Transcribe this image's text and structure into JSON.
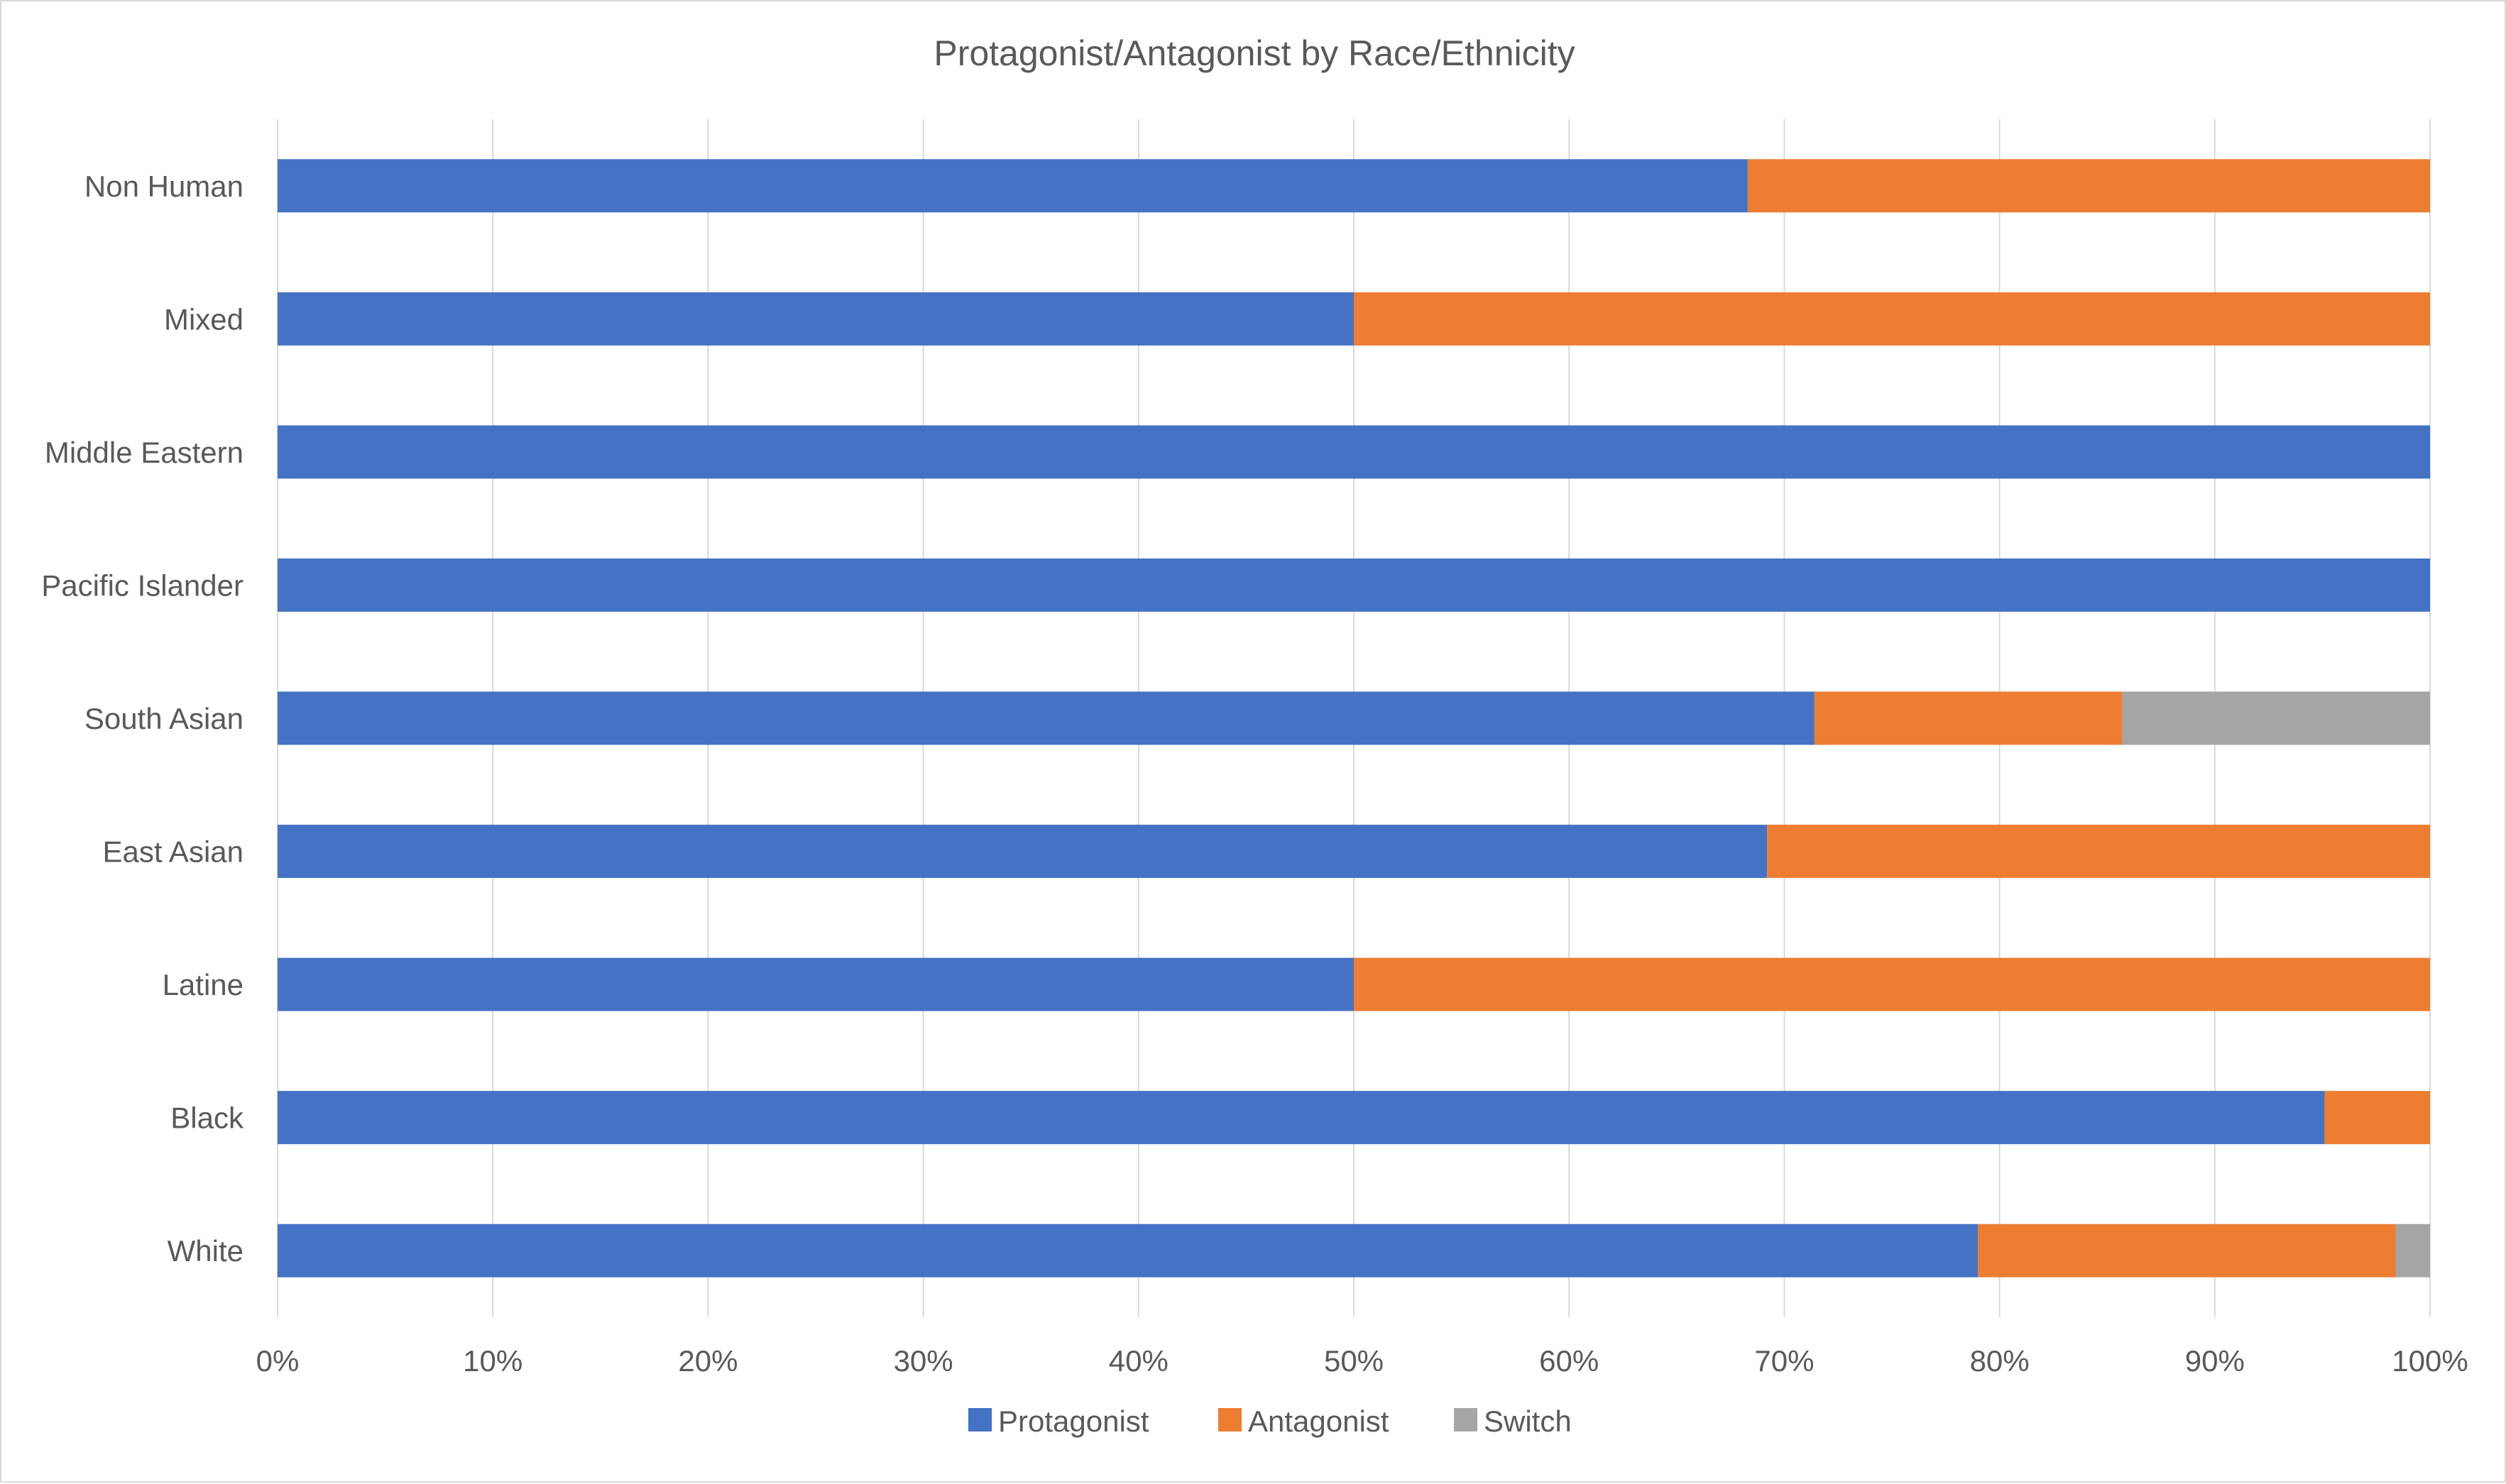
{
  "chart_data": {
    "type": "bar",
    "orientation": "horizontal",
    "stacked": "percent",
    "title": "Protagonist/Antagonist by Race/Ethnicity",
    "categories": [
      "Non Human",
      "Mixed",
      "Middle Eastern",
      "Pacific Islander",
      "South Asian",
      "East Asian",
      "Latine",
      "Black",
      "White"
    ],
    "series": [
      {
        "name": "Protagonist",
        "color": "#4472C4",
        "values": [
          68.3,
          50.0,
          100.0,
          100.0,
          71.4,
          69.2,
          50.0,
          95.1,
          79.0
        ]
      },
      {
        "name": "Antagonist",
        "color": "#ED7D31",
        "values": [
          31.7,
          50.0,
          0.0,
          0.0,
          14.3,
          30.8,
          50.0,
          4.9,
          19.4
        ]
      },
      {
        "name": "Switch",
        "color": "#A5A5A5",
        "values": [
          0.0,
          0.0,
          0.0,
          0.0,
          14.3,
          0.0,
          0.0,
          0.0,
          1.6
        ]
      }
    ],
    "xlim": [
      0,
      100
    ],
    "x_ticks": [
      "0%",
      "10%",
      "20%",
      "30%",
      "40%",
      "50%",
      "60%",
      "70%",
      "80%",
      "90%",
      "100%"
    ],
    "grid": "vertical",
    "legend": "bottom"
  }
}
